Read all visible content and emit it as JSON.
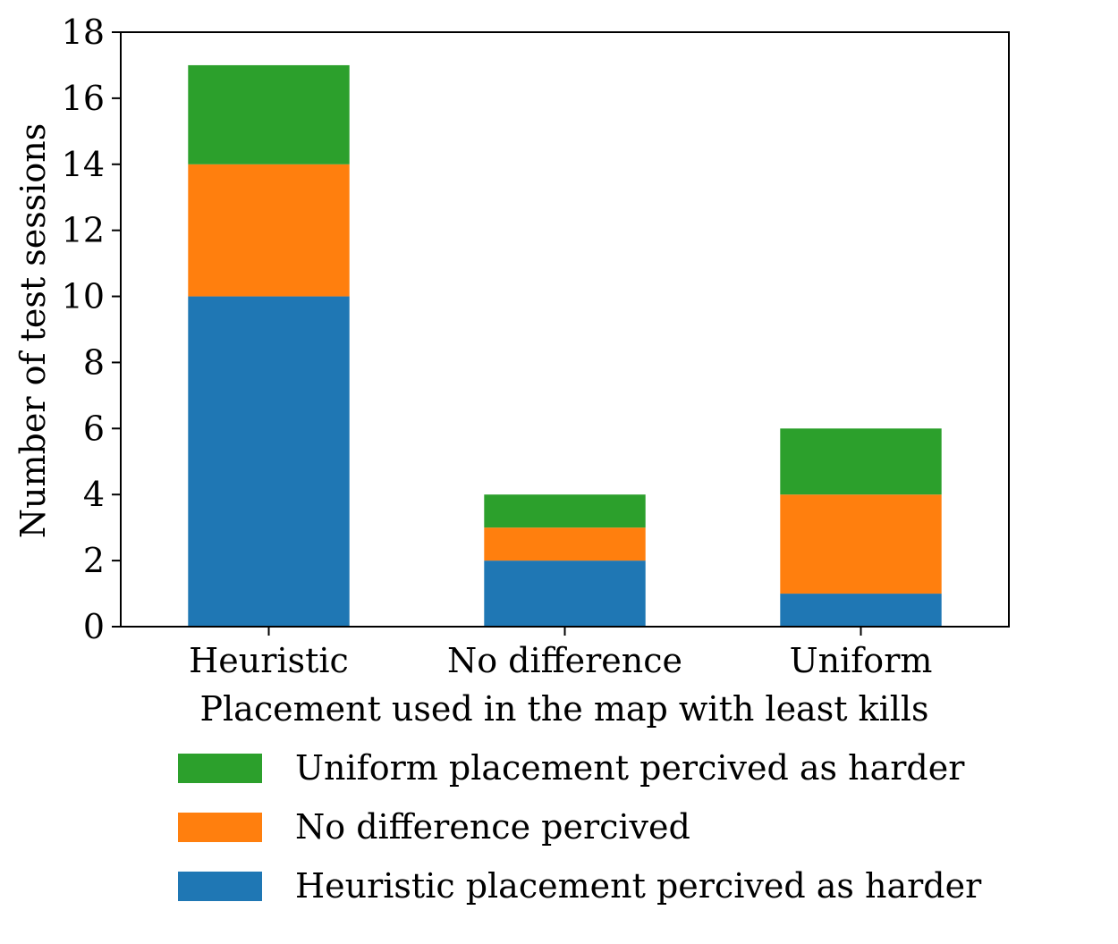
{
  "chart_data": {
    "type": "bar",
    "stacked": true,
    "categories": [
      "Heuristic",
      "No difference",
      "Uniform"
    ],
    "series": [
      {
        "name": "Heuristic placement percived as harder",
        "values": [
          10,
          2,
          1
        ],
        "color": "#1f77b4"
      },
      {
        "name": "No difference percived",
        "values": [
          4,
          1,
          3
        ],
        "color": "#ff7f0e"
      },
      {
        "name": "Uniform placement percived as harder",
        "values": [
          3,
          1,
          2
        ],
        "color": "#2ca02c"
      }
    ],
    "legend_order": [
      2,
      1,
      0
    ],
    "title": "",
    "xlabel": "Placement used in the map with least kills",
    "ylabel": "Number of test sessions",
    "ylim": [
      0,
      18
    ],
    "yticks": [
      0,
      2,
      4,
      6,
      8,
      10,
      12,
      14,
      16,
      18
    ],
    "grid": false,
    "legend_position": "bottom"
  }
}
